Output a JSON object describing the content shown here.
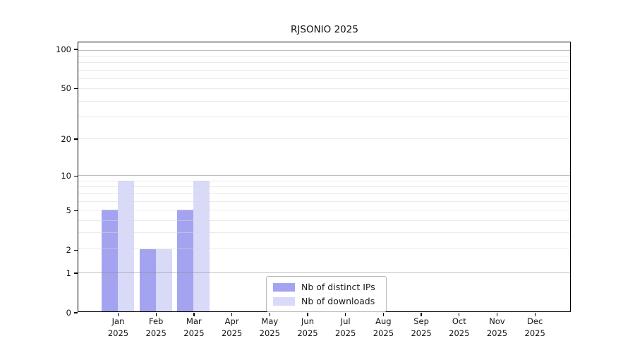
{
  "chart_data": {
    "type": "bar",
    "title": "RJSONIO 2025",
    "categories": [
      "Jan",
      "Feb",
      "Mar",
      "Apr",
      "May",
      "Jun",
      "Jul",
      "Aug",
      "Sep",
      "Oct",
      "Nov",
      "Dec"
    ],
    "x_year_label": "2025",
    "series": [
      {
        "name": "Nb of distinct IPs",
        "color": "#a3a3f0",
        "values": [
          5,
          2,
          5,
          0,
          0,
          0,
          0,
          0,
          0,
          0,
          0,
          0
        ]
      },
      {
        "name": "Nb of downloads",
        "color": "#d9d9f8",
        "values": [
          9,
          2,
          9,
          0,
          0,
          0,
          0,
          0,
          0,
          0,
          0,
          0
        ]
      }
    ],
    "yscale": "log1p",
    "ylim": [
      0,
      115
    ],
    "yticks": [
      0,
      1,
      2,
      5,
      10,
      20,
      50,
      100
    ],
    "grid": {
      "on": true,
      "major_values": [
        1,
        10,
        100
      ],
      "minor_values": [
        2,
        3,
        4,
        5,
        6,
        7,
        8,
        9,
        20,
        30,
        40,
        50,
        60,
        70,
        80,
        90
      ],
      "major_color": "#8a8a8a",
      "minor_color": "#d9d9d9"
    },
    "legend": {
      "position": "lower-center",
      "border_color": "#b9b9b9",
      "background": "#ffffff"
    },
    "axis_color": "#000000",
    "background": "#ffffff"
  }
}
